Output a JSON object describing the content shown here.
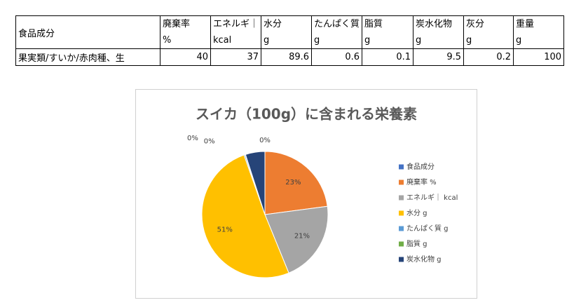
{
  "table": {
    "header": [
      {
        "name": "食品成分"
      },
      {
        "name": "廃棄率",
        "unit": "%"
      },
      {
        "name": "エネルギ｜",
        "unit": "kcal"
      },
      {
        "name": "水分",
        "unit": "g"
      },
      {
        "name": "たんぱく質",
        "unit": "g"
      },
      {
        "name": "脂質",
        "unit": "g"
      },
      {
        "name": "炭水化物",
        "unit": "g"
      },
      {
        "name": "灰分",
        "unit": "g"
      },
      {
        "name": "重量",
        "unit": "g"
      }
    ],
    "rows": [
      [
        "果実類/すいか/赤肉種、生",
        40,
        37,
        89.6,
        0.6,
        0.1,
        9.5,
        0.2,
        100
      ]
    ]
  },
  "chart_data": {
    "type": "pie",
    "title": "スイカ（100g）に含まれる栄養素",
    "categories": [
      "食品成分",
      "廃棄率 %",
      "エネルギ｜ kcal",
      "水分 g",
      "たんぱく質 g",
      "脂質 g",
      "炭水化物 g"
    ],
    "values": [
      0,
      23,
      21,
      51,
      0.3,
      0.1,
      5
    ],
    "value_labels": [
      "0%",
      "23%",
      "21%",
      "51%",
      "0%",
      "0%",
      null
    ],
    "colors": [
      "#4472c4",
      "#ed7d31",
      "#a5a5a5",
      "#ffc000",
      "#5b9bd5",
      "#70ad47",
      "#264478"
    ],
    "legend": "right"
  }
}
